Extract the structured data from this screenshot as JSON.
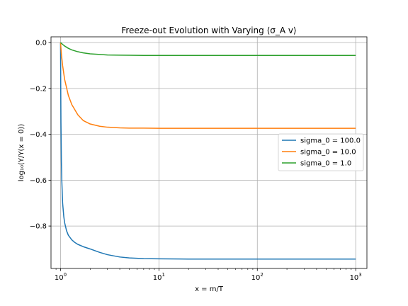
{
  "chart_data": {
    "type": "line",
    "title": "Freeze-out Evolution with Varying ⟨σ_A v⟩",
    "xlabel": "x = m/T",
    "ylabel": "log₁₀(Y/Y(x = 0))",
    "xscale": "log",
    "xlim": [
      0.8,
      1300
    ],
    "ylim": [
      -0.985,
      0.025
    ],
    "x_ticks": [
      {
        "value": 1,
        "base": "10",
        "exp": "0"
      },
      {
        "value": 10,
        "base": "10",
        "exp": "1"
      },
      {
        "value": 100,
        "base": "10",
        "exp": "2"
      },
      {
        "value": 1000,
        "base": "10",
        "exp": "3"
      }
    ],
    "y_ticks": [
      {
        "value": 0.0,
        "label": "0.0"
      },
      {
        "value": -0.2,
        "label": "−0.2"
      },
      {
        "value": -0.4,
        "label": "−0.4"
      },
      {
        "value": -0.6,
        "label": "−0.6"
      },
      {
        "value": -0.8,
        "label": "−0.8"
      }
    ],
    "grid": true,
    "legend_position": "center-right",
    "series": [
      {
        "name": "sigma_0 = 100.0",
        "color": "#1f77b4",
        "x": [
          1.0,
          1.005,
          1.01,
          1.02,
          1.03,
          1.05,
          1.08,
          1.1,
          1.15,
          1.2,
          1.3,
          1.4,
          1.5,
          1.7,
          2.0,
          2.5,
          3.0,
          4.0,
          5.0,
          7.0,
          10,
          20,
          50,
          100,
          1000
        ],
        "y": [
          0.0,
          -0.2,
          -0.35,
          -0.52,
          -0.6,
          -0.7,
          -0.76,
          -0.785,
          -0.82,
          -0.84,
          -0.86,
          -0.872,
          -0.88,
          -0.89,
          -0.9,
          -0.915,
          -0.925,
          -0.935,
          -0.939,
          -0.942,
          -0.943,
          -0.944,
          -0.944,
          -0.944,
          -0.944
        ]
      },
      {
        "name": "sigma_0 = 10.0",
        "color": "#ff7f0e",
        "x": [
          1.0,
          1.02,
          1.05,
          1.1,
          1.2,
          1.3,
          1.5,
          1.7,
          2.0,
          2.5,
          3.0,
          4.0,
          5.0,
          7.0,
          10,
          20,
          50,
          100,
          1000
        ],
        "y": [
          0.0,
          -0.05,
          -0.1,
          -0.16,
          -0.23,
          -0.27,
          -0.315,
          -0.34,
          -0.355,
          -0.365,
          -0.369,
          -0.372,
          -0.373,
          -0.373,
          -0.374,
          -0.374,
          -0.374,
          -0.374,
          -0.374
        ]
      },
      {
        "name": "sigma_0 = 1.0",
        "color": "#2ca02c",
        "x": [
          1.0,
          1.05,
          1.1,
          1.2,
          1.3,
          1.5,
          1.7,
          2.0,
          2.5,
          3.0,
          4.0,
          5.0,
          7.0,
          10,
          20,
          50,
          100,
          1000
        ],
        "y": [
          0.0,
          -0.008,
          -0.015,
          -0.025,
          -0.032,
          -0.04,
          -0.045,
          -0.049,
          -0.052,
          -0.054,
          -0.055,
          -0.0555,
          -0.056,
          -0.056,
          -0.056,
          -0.056,
          -0.056,
          -0.056
        ]
      }
    ]
  }
}
